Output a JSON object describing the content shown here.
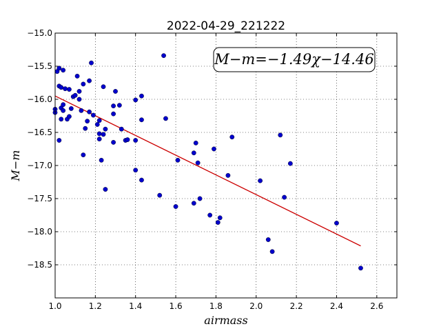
{
  "chart_data": {
    "type": "scatter",
    "title": "2022-04-29_221222",
    "xlabel": "airmass",
    "ylabel": "M−m",
    "xlim": [
      1.0,
      2.7
    ],
    "ylim": [
      -19.0,
      -15.0
    ],
    "y_inverted": true,
    "grid": true,
    "x_ticks": [
      1.0,
      1.2,
      1.4,
      1.6,
      1.8,
      2.0,
      2.2,
      2.4,
      2.6
    ],
    "x_tick_labels": [
      "1.0",
      "1.2",
      "1.4",
      "1.6",
      "1.8",
      "2.0",
      "2.2",
      "2.4",
      "2.6"
    ],
    "y_ticks": [
      -15.0,
      -15.5,
      -16.0,
      -16.5,
      -17.0,
      -17.5,
      -18.0,
      -18.5
    ],
    "y_tick_labels": [
      "−15.0",
      "−15.5",
      "−16.0",
      "−16.5",
      "−17.0",
      "−17.5",
      "−18.0",
      "−18.5"
    ],
    "annotation": "M−m=−1.49χ−14.46",
    "fit": {
      "slope": -1.49,
      "intercept": -14.46,
      "x_range": [
        1.0,
        2.52
      ],
      "color": "#cc0000"
    },
    "point_color": "#0000cc",
    "points": [
      [
        1.0,
        -16.2
      ],
      [
        1.0,
        -16.15
      ],
      [
        1.01,
        -15.58
      ],
      [
        1.02,
        -15.53
      ],
      [
        1.02,
        -15.8
      ],
      [
        1.02,
        -16.62
      ],
      [
        1.03,
        -16.3
      ],
      [
        1.03,
        -15.82
      ],
      [
        1.03,
        -16.13
      ],
      [
        1.04,
        -15.56
      ],
      [
        1.04,
        -16.08
      ],
      [
        1.04,
        -16.17
      ],
      [
        1.05,
        -15.84
      ],
      [
        1.06,
        -16.3
      ],
      [
        1.07,
        -15.85
      ],
      [
        1.07,
        -16.26
      ],
      [
        1.08,
        -16.14
      ],
      [
        1.09,
        -15.96
      ],
      [
        1.1,
        -15.94
      ],
      [
        1.11,
        -15.65
      ],
      [
        1.12,
        -15.88
      ],
      [
        1.12,
        -16.0
      ],
      [
        1.13,
        -16.17
      ],
      [
        1.14,
        -15.77
      ],
      [
        1.14,
        -16.84
      ],
      [
        1.15,
        -16.44
      ],
      [
        1.16,
        -16.33
      ],
      [
        1.17,
        -15.72
      ],
      [
        1.17,
        -16.19
      ],
      [
        1.18,
        -15.45
      ],
      [
        1.19,
        -16.24
      ],
      [
        1.21,
        -16.38
      ],
      [
        1.22,
        -16.32
      ],
      [
        1.22,
        -16.6
      ],
      [
        1.22,
        -16.52
      ],
      [
        1.23,
        -16.92
      ],
      [
        1.24,
        -15.81
      ],
      [
        1.24,
        -16.53
      ],
      [
        1.25,
        -16.45
      ],
      [
        1.25,
        -17.36
      ],
      [
        1.29,
        -16.1
      ],
      [
        1.29,
        -16.22
      ],
      [
        1.29,
        -16.65
      ],
      [
        1.3,
        -15.88
      ],
      [
        1.32,
        -16.09
      ],
      [
        1.33,
        -16.45
      ],
      [
        1.35,
        -16.62
      ],
      [
        1.36,
        -16.61
      ],
      [
        1.4,
        -16.01
      ],
      [
        1.4,
        -16.62
      ],
      [
        1.4,
        -17.07
      ],
      [
        1.43,
        -15.95
      ],
      [
        1.43,
        -16.31
      ],
      [
        1.43,
        -17.22
      ],
      [
        1.52,
        -17.45
      ],
      [
        1.54,
        -15.34
      ],
      [
        1.55,
        -16.29
      ],
      [
        1.6,
        -17.62
      ],
      [
        1.61,
        -16.92
      ],
      [
        1.69,
        -17.57
      ],
      [
        1.69,
        -16.81
      ],
      [
        1.7,
        -16.66
      ],
      [
        1.71,
        -16.96
      ],
      [
        1.72,
        -17.5
      ],
      [
        1.77,
        -17.75
      ],
      [
        1.79,
        -16.75
      ],
      [
        1.81,
        -17.86
      ],
      [
        1.82,
        -17.79
      ],
      [
        1.86,
        -17.15
      ],
      [
        1.88,
        -16.57
      ],
      [
        2.02,
        -17.23
      ],
      [
        2.06,
        -18.12
      ],
      [
        2.08,
        -18.3
      ],
      [
        2.12,
        -16.54
      ],
      [
        2.14,
        -17.48
      ],
      [
        2.17,
        -16.97
      ],
      [
        2.4,
        -17.87
      ],
      [
        2.52,
        -18.55
      ]
    ]
  }
}
